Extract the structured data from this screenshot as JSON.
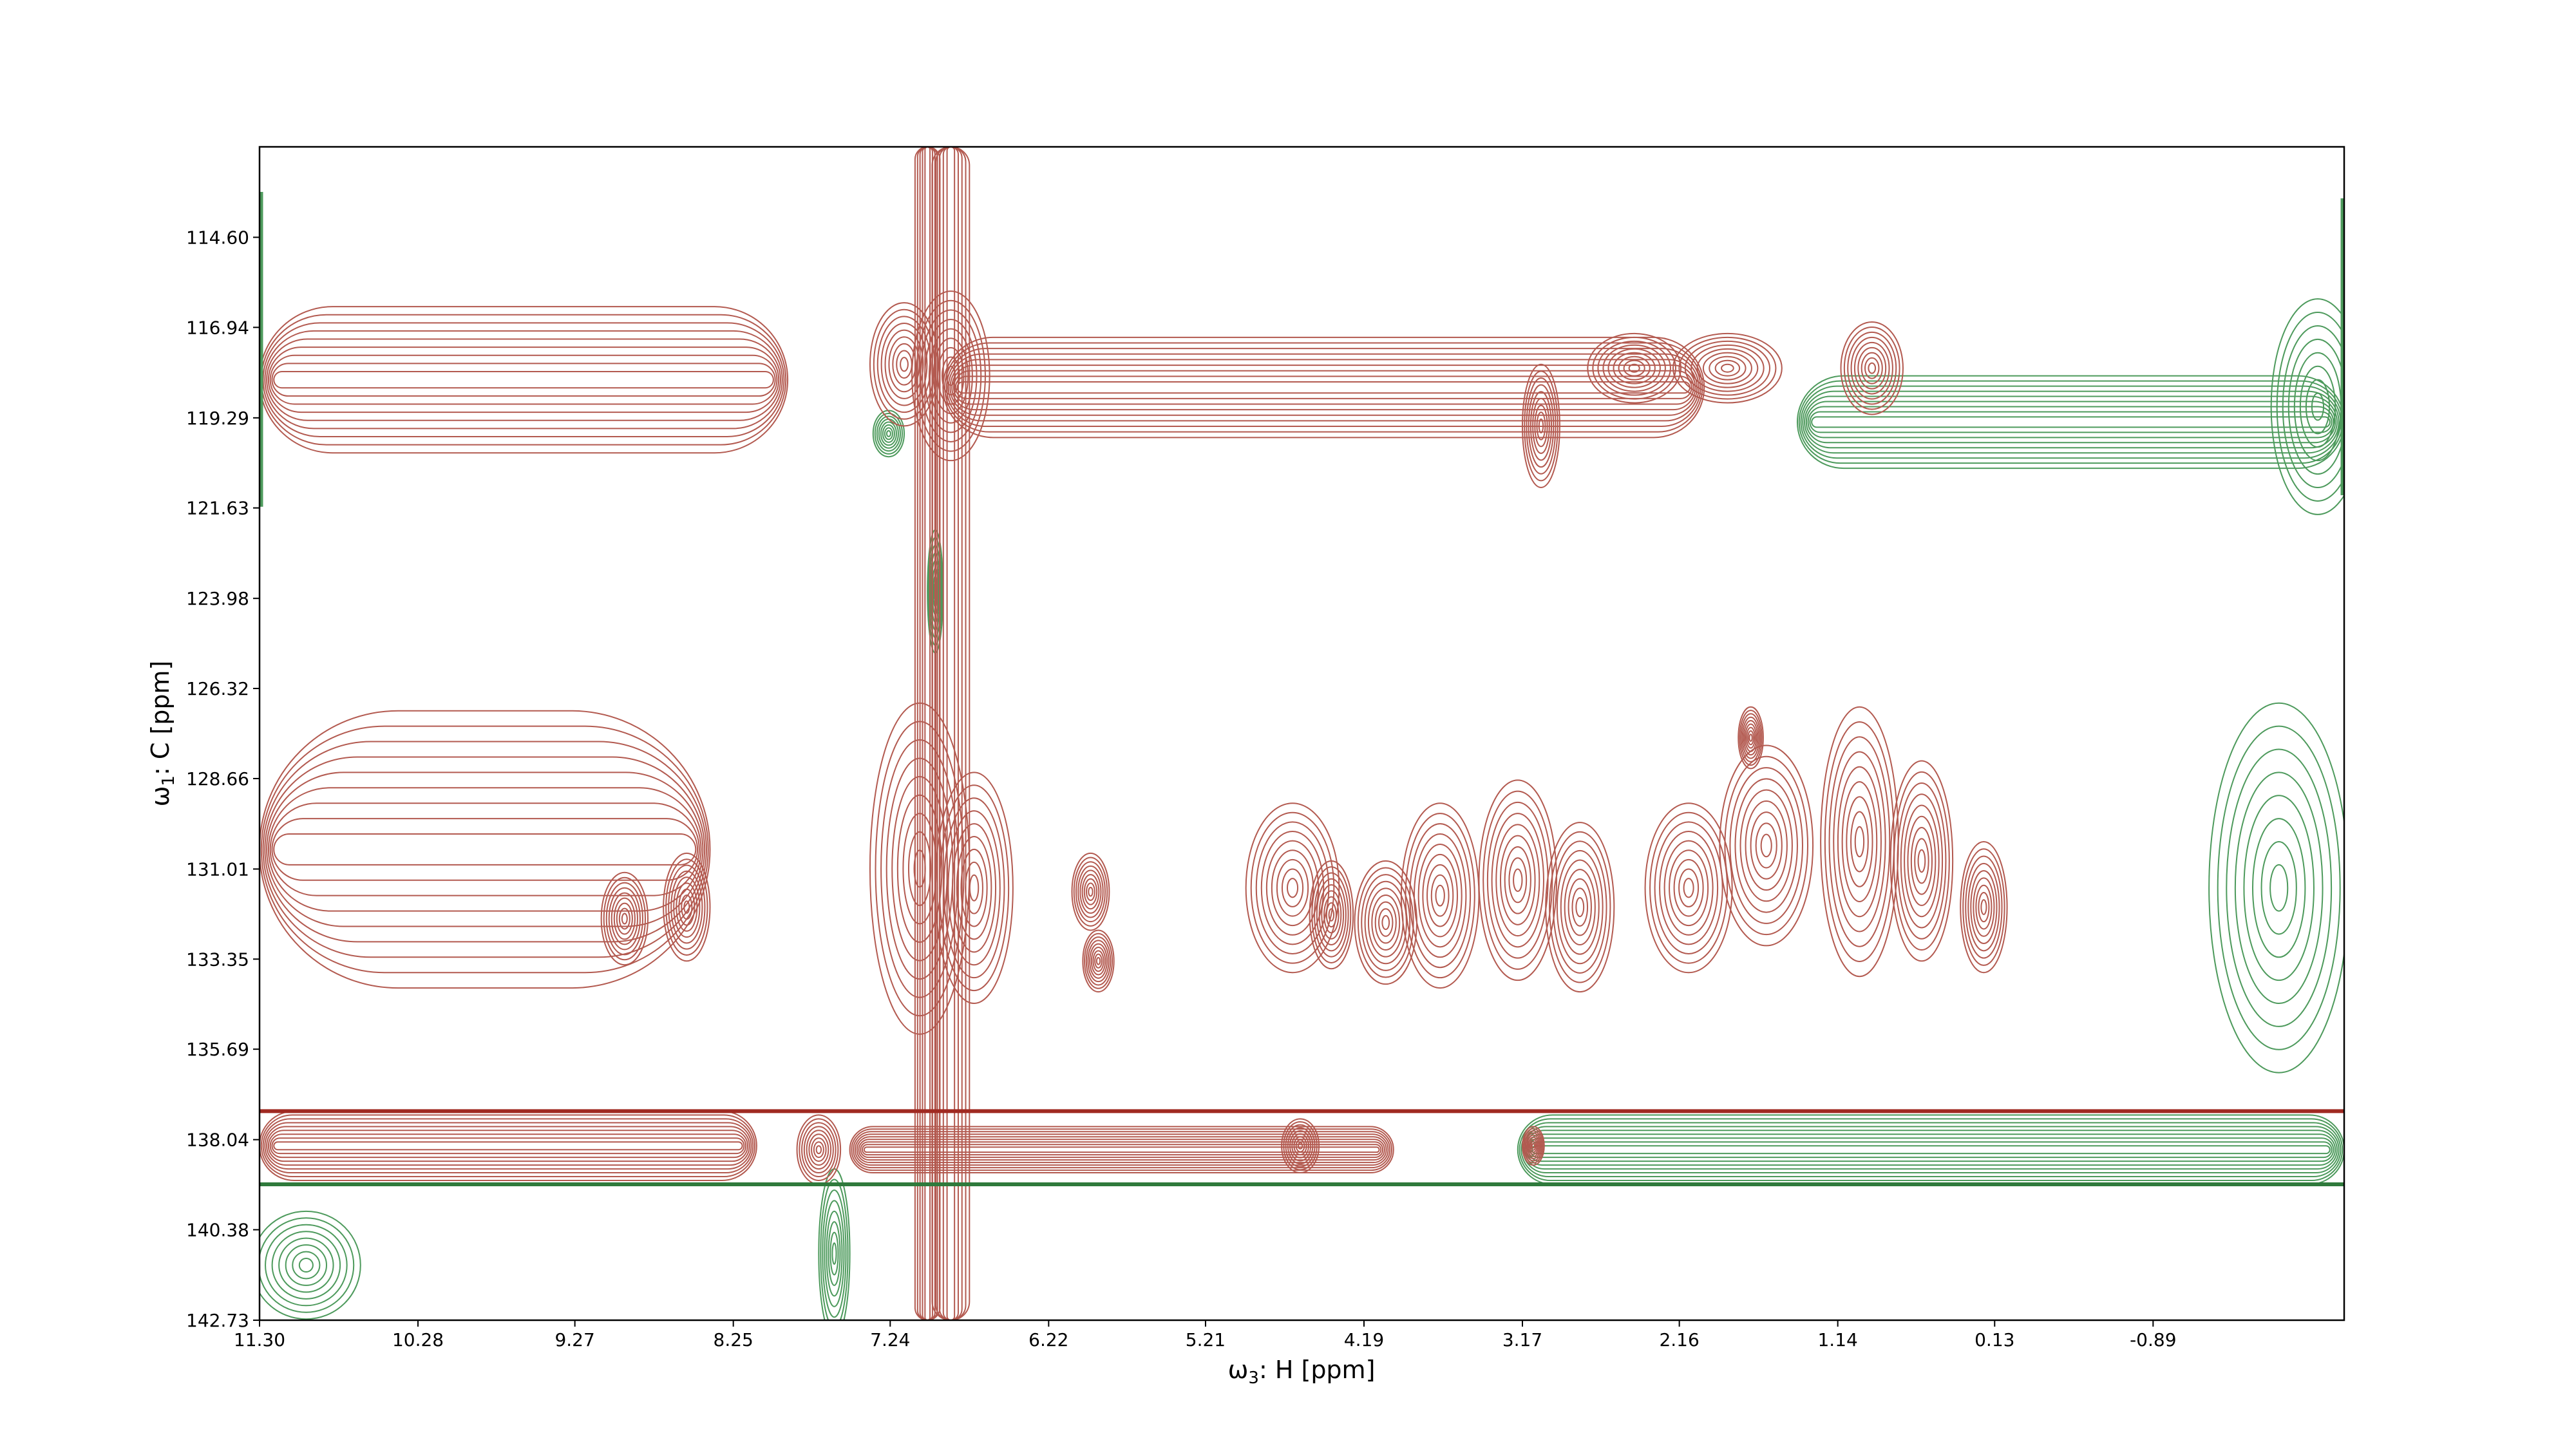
{
  "chart_data": {
    "type": "contour",
    "xlabel": {
      "prefix": "ω",
      "sub": "3",
      "rest": ": H [ppm]"
    },
    "ylabel": {
      "prefix": "ω",
      "sub": "1",
      "rest": ": C [ppm]"
    },
    "xlim": [
      11.3,
      -2.12
    ],
    "ylim": [
      112.25,
      142.73
    ],
    "x_ticks": [
      "11.30",
      "10.28",
      "9.27",
      "8.25",
      "7.24",
      "6.22",
      "5.21",
      "4.19",
      "3.17",
      "2.16",
      "1.14",
      "0.13",
      "-0.89"
    ],
    "y_ticks": [
      "114.60",
      "116.94",
      "119.29",
      "121.63",
      "123.98",
      "126.32",
      "128.66",
      "131.01",
      "133.35",
      "135.69",
      "138.04",
      "140.38",
      "142.73"
    ],
    "colors": {
      "positive": "#b35a50",
      "negative": "#4d9a5c"
    },
    "positive_peaks": [
      {
        "x": 7.05,
        "y": 131.0,
        "rx": 0.32,
        "ry": 4.3
      },
      {
        "x": 6.7,
        "y": 131.5,
        "rx": 0.25,
        "ry": 3.0
      },
      {
        "x": 7.15,
        "y": 117.9,
        "rx": 0.22,
        "ry": 1.6
      },
      {
        "x": 6.85,
        "y": 118.2,
        "rx": 0.25,
        "ry": 2.2
      },
      {
        "x": 4.65,
        "y": 131.5,
        "rx": 0.3,
        "ry": 2.2
      },
      {
        "x": 4.05,
        "y": 132.4,
        "rx": 0.2,
        "ry": 1.6
      },
      {
        "x": 3.7,
        "y": 131.7,
        "rx": 0.25,
        "ry": 2.4
      },
      {
        "x": 3.2,
        "y": 131.3,
        "rx": 0.25,
        "ry": 2.6
      },
      {
        "x": 2.8,
        "y": 132.0,
        "rx": 0.22,
        "ry": 2.2
      },
      {
        "x": 2.1,
        "y": 131.5,
        "rx": 0.28,
        "ry": 2.2
      },
      {
        "x": 1.6,
        "y": 130.4,
        "rx": 0.3,
        "ry": 2.6
      },
      {
        "x": 1.0,
        "y": 130.3,
        "rx": 0.25,
        "ry": 3.5
      },
      {
        "x": 0.6,
        "y": 130.8,
        "rx": 0.2,
        "ry": 2.6
      },
      {
        "x": 0.2,
        "y": 132.0,
        "rx": 0.15,
        "ry": 1.7
      },
      {
        "x": 2.45,
        "y": 118.0,
        "rx": 0.3,
        "ry": 0.9
      },
      {
        "x": 1.85,
        "y": 118.0,
        "rx": 0.35,
        "ry": 0.9
      },
      {
        "x": 0.92,
        "y": 118.0,
        "rx": 0.2,
        "ry": 1.2
      },
      {
        "x": 3.05,
        "y": 119.5,
        "rx": 0.12,
        "ry": 1.6
      },
      {
        "x": 7.7,
        "y": 138.3,
        "rx": 0.14,
        "ry": 0.9
      },
      {
        "x": 4.6,
        "y": 138.2,
        "rx": 0.12,
        "ry": 0.7
      },
      {
        "x": 3.1,
        "y": 138.2,
        "rx": 0.07,
        "ry": 0.5
      },
      {
        "x": 5.9,
        "y": 133.4,
        "rx": 0.1,
        "ry": 0.8
      },
      {
        "x": 1.7,
        "y": 127.6,
        "rx": 0.08,
        "ry": 0.8
      },
      {
        "x": 8.95,
        "y": 132.3,
        "rx": 0.15,
        "ry": 1.2
      },
      {
        "x": 8.55,
        "y": 132.0,
        "rx": 0.15,
        "ry": 1.4
      },
      {
        "x": 5.95,
        "y": 131.6,
        "rx": 0.12,
        "ry": 1.0
      },
      {
        "x": 4.4,
        "y": 132.2,
        "rx": 0.14,
        "ry": 1.4
      }
    ],
    "positive_bands": [
      {
        "y": 118.3,
        "ry": 1.9,
        "x1": 11.3,
        "x2": 7.9
      },
      {
        "y": 118.5,
        "ry": 1.3,
        "x1": 6.9,
        "x2": 2.0
      },
      {
        "y": 138.2,
        "ry": 0.9,
        "x1": 11.3,
        "x2": 8.1
      },
      {
        "y": 138.3,
        "ry": 0.6,
        "x1": 7.5,
        "x2": 4.0
      },
      {
        "y": 130.5,
        "ry": 3.6,
        "x1": 11.3,
        "x2": 8.4
      }
    ],
    "positive_vlines": [
      {
        "x": 6.85,
        "y1": 112.25,
        "y2": 142.73,
        "rx": 0.12
      },
      {
        "x": 7.0,
        "y1": 112.25,
        "y2": 142.73,
        "rx": 0.08
      }
    ],
    "negative_bands": [
      {
        "y": 119.4,
        "ry": 1.2,
        "x1": 1.4,
        "x2": -2.12
      },
      {
        "y": 138.3,
        "ry": 0.9,
        "x1": 3.2,
        "x2": -2.12
      }
    ],
    "negative_regions": [
      {
        "x": -1.7,
        "y": 131.5,
        "rx": 0.45,
        "ry": 4.8
      },
      {
        "x": -1.95,
        "y": 119.0,
        "rx": 0.3,
        "ry": 2.8
      },
      {
        "x": 11.0,
        "y": 141.3,
        "rx": 0.35,
        "ry": 1.4
      },
      {
        "x": 7.6,
        "y": 141.0,
        "rx": 0.1,
        "ry": 2.2
      },
      {
        "x": 6.95,
        "y": 123.8,
        "rx": 0.05,
        "ry": 1.6
      },
      {
        "x": 7.25,
        "y": 119.7,
        "rx": 0.1,
        "ry": 0.6
      }
    ],
    "edge_lines": [
      {
        "kind": "h",
        "y": 137.3,
        "color": "dark-red"
      },
      {
        "kind": "h",
        "y": 139.2,
        "color": "dark-green"
      }
    ]
  }
}
